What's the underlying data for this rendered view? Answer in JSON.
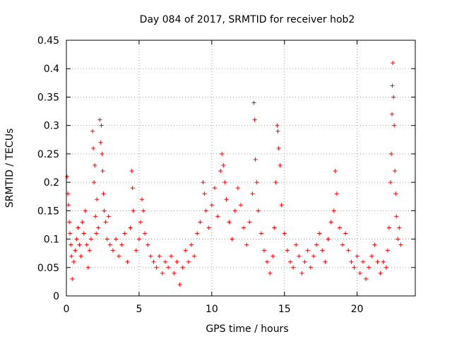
{
  "chart_data": {
    "type": "scatter",
    "title": "Day 084 of 2017, SRMTID for receiver hob2",
    "xlabel": "GPS time / hours",
    "ylabel": "SRMTID / TECUs",
    "xlim": [
      0,
      24
    ],
    "ylim": [
      0,
      0.45
    ],
    "xticks": [
      0,
      5,
      10,
      15,
      20
    ],
    "yticks": [
      0,
      0.05,
      0.1,
      0.15,
      0.2,
      0.25,
      0.3,
      0.35,
      0.4,
      0.45
    ],
    "xtick_labels": [
      "0",
      "5",
      "10",
      "15",
      "20"
    ],
    "ytick_labels": [
      "0",
      "0.05",
      "0.1",
      "0.15",
      "0.2",
      "0.25",
      "0.3",
      "0.35",
      "0.4",
      "0.45"
    ],
    "grid": true,
    "marker": "plus",
    "color": "#ff0000",
    "series": [
      {
        "name": "SRMTID",
        "points": [
          [
            0.05,
            0.21
          ],
          [
            0.1,
            0.18
          ],
          [
            0.15,
            0.16
          ],
          [
            0.2,
            0.13
          ],
          [
            0.25,
            0.11
          ],
          [
            0.3,
            0.09
          ],
          [
            0.35,
            0.07
          ],
          [
            0.4,
            0.03
          ],
          [
            0.5,
            0.06
          ],
          [
            0.6,
            0.08
          ],
          [
            0.7,
            0.1
          ],
          [
            0.8,
            0.12
          ],
          [
            0.9,
            0.09
          ],
          [
            1.0,
            0.07
          ],
          [
            1.1,
            0.13
          ],
          [
            1.2,
            0.11
          ],
          [
            1.3,
            0.15
          ],
          [
            1.4,
            0.09
          ],
          [
            1.5,
            0.05
          ],
          [
            1.6,
            0.08
          ],
          [
            1.7,
            0.1
          ],
          [
            1.8,
            0.29
          ],
          [
            1.85,
            0.26
          ],
          [
            1.9,
            0.2
          ],
          [
            1.95,
            0.23
          ],
          [
            2.0,
            0.14
          ],
          [
            2.05,
            0.11
          ],
          [
            2.1,
            0.17
          ],
          [
            2.2,
            0.12
          ],
          [
            2.3,
            0.31
          ],
          [
            2.35,
            0.27
          ],
          [
            2.4,
            0.3
          ],
          [
            2.45,
            0.25
          ],
          [
            2.5,
            0.22
          ],
          [
            2.55,
            0.18
          ],
          [
            2.6,
            0.15
          ],
          [
            2.7,
            0.13
          ],
          [
            2.8,
            0.1
          ],
          [
            2.9,
            0.14
          ],
          [
            3.0,
            0.09
          ],
          [
            3.2,
            0.08
          ],
          [
            3.4,
            0.1
          ],
          [
            3.6,
            0.07
          ],
          [
            3.8,
            0.09
          ],
          [
            4.0,
            0.11
          ],
          [
            4.2,
            0.06
          ],
          [
            4.4,
            0.12
          ],
          [
            4.5,
            0.22
          ],
          [
            4.55,
            0.19
          ],
          [
            4.6,
            0.15
          ],
          [
            4.8,
            0.08
          ],
          [
            5.0,
            0.1
          ],
          [
            5.1,
            0.13
          ],
          [
            5.2,
            0.17
          ],
          [
            5.3,
            0.15
          ],
          [
            5.4,
            0.11
          ],
          [
            5.6,
            0.09
          ],
          [
            5.8,
            0.07
          ],
          [
            6.0,
            0.06
          ],
          [
            6.2,
            0.05
          ],
          [
            6.4,
            0.07
          ],
          [
            6.6,
            0.04
          ],
          [
            6.8,
            0.06
          ],
          [
            7.0,
            0.05
          ],
          [
            7.2,
            0.07
          ],
          [
            7.4,
            0.04
          ],
          [
            7.6,
            0.06
          ],
          [
            7.8,
            0.02
          ],
          [
            8.0,
            0.05
          ],
          [
            8.2,
            0.08
          ],
          [
            8.4,
            0.06
          ],
          [
            8.6,
            0.09
          ],
          [
            8.8,
            0.07
          ],
          [
            9.0,
            0.11
          ],
          [
            9.2,
            0.13
          ],
          [
            9.4,
            0.2
          ],
          [
            9.5,
            0.18
          ],
          [
            9.6,
            0.15
          ],
          [
            9.8,
            0.12
          ],
          [
            10.0,
            0.16
          ],
          [
            10.2,
            0.19
          ],
          [
            10.4,
            0.14
          ],
          [
            10.6,
            0.22
          ],
          [
            10.7,
            0.25
          ],
          [
            10.8,
            0.23
          ],
          [
            10.9,
            0.2
          ],
          [
            11.0,
            0.17
          ],
          [
            11.2,
            0.13
          ],
          [
            11.4,
            0.1
          ],
          [
            11.6,
            0.15
          ],
          [
            11.8,
            0.19
          ],
          [
            12.0,
            0.16
          ],
          [
            12.2,
            0.12
          ],
          [
            12.4,
            0.09
          ],
          [
            12.6,
            0.13
          ],
          [
            12.8,
            0.18
          ],
          [
            12.9,
            0.34
          ],
          [
            12.95,
            0.31
          ],
          [
            13.0,
            0.24
          ],
          [
            13.1,
            0.2
          ],
          [
            13.2,
            0.15
          ],
          [
            13.4,
            0.11
          ],
          [
            13.6,
            0.08
          ],
          [
            13.8,
            0.06
          ],
          [
            14.0,
            0.04
          ],
          [
            14.2,
            0.07
          ],
          [
            14.3,
            0.12
          ],
          [
            14.4,
            0.2
          ],
          [
            14.5,
            0.3
          ],
          [
            14.55,
            0.29
          ],
          [
            14.6,
            0.26
          ],
          [
            14.7,
            0.23
          ],
          [
            14.8,
            0.16
          ],
          [
            15.0,
            0.11
          ],
          [
            15.2,
            0.08
          ],
          [
            15.4,
            0.06
          ],
          [
            15.6,
            0.05
          ],
          [
            15.8,
            0.09
          ],
          [
            16.0,
            0.07
          ],
          [
            16.2,
            0.04
          ],
          [
            16.4,
            0.06
          ],
          [
            16.6,
            0.08
          ],
          [
            16.8,
            0.05
          ],
          [
            17.0,
            0.07
          ],
          [
            17.2,
            0.09
          ],
          [
            17.4,
            0.11
          ],
          [
            17.6,
            0.08
          ],
          [
            17.8,
            0.06
          ],
          [
            18.0,
            0.1
          ],
          [
            18.2,
            0.13
          ],
          [
            18.4,
            0.15
          ],
          [
            18.5,
            0.22
          ],
          [
            18.6,
            0.18
          ],
          [
            18.8,
            0.12
          ],
          [
            19.0,
            0.09
          ],
          [
            19.2,
            0.11
          ],
          [
            19.4,
            0.08
          ],
          [
            19.6,
            0.06
          ],
          [
            19.8,
            0.05
          ],
          [
            20.0,
            0.07
          ],
          [
            20.2,
            0.04
          ],
          [
            20.4,
            0.06
          ],
          [
            20.6,
            0.03
          ],
          [
            20.8,
            0.05
          ],
          [
            21.0,
            0.07
          ],
          [
            21.2,
            0.09
          ],
          [
            21.4,
            0.06
          ],
          [
            21.6,
            0.04
          ],
          [
            21.8,
            0.06
          ],
          [
            22.0,
            0.05
          ],
          [
            22.1,
            0.08
          ],
          [
            22.2,
            0.12
          ],
          [
            22.3,
            0.2
          ],
          [
            22.35,
            0.25
          ],
          [
            22.4,
            0.32
          ],
          [
            22.42,
            0.37
          ],
          [
            22.45,
            0.41
          ],
          [
            22.5,
            0.35
          ],
          [
            22.55,
            0.3
          ],
          [
            22.6,
            0.22
          ],
          [
            22.65,
            0.18
          ],
          [
            22.7,
            0.14
          ],
          [
            22.8,
            0.1
          ],
          [
            22.9,
            0.12
          ],
          [
            23.0,
            0.09
          ]
        ]
      }
    ]
  }
}
